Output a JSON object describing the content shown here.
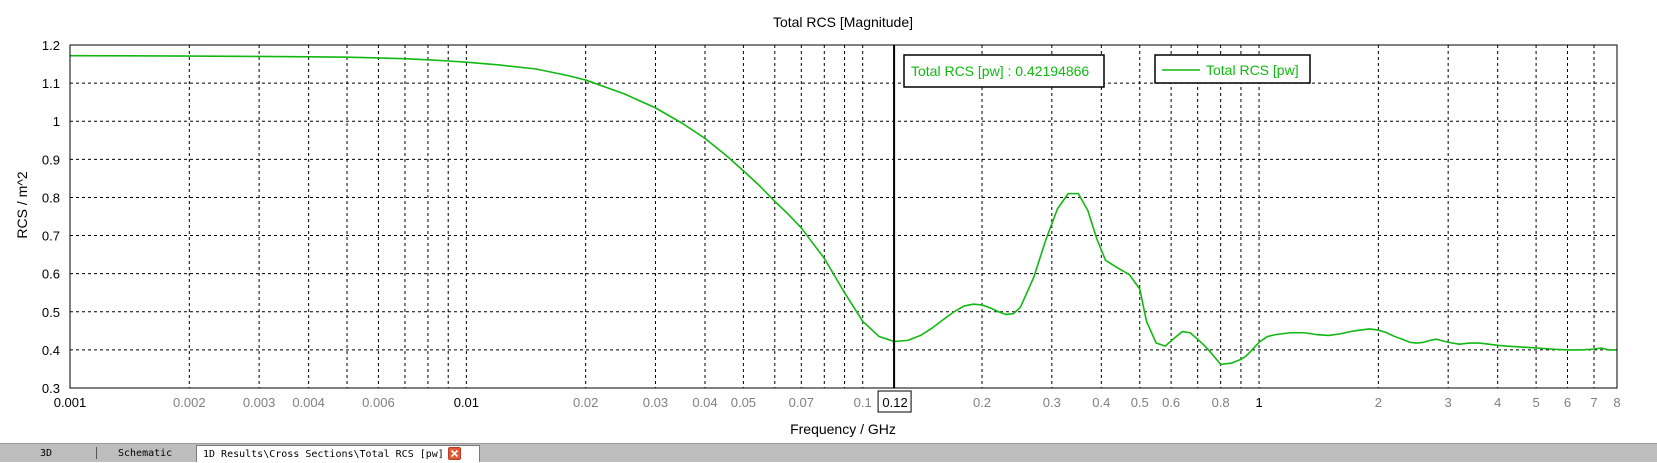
{
  "chart_data": {
    "type": "line",
    "title": "Total RCS [Magnitude]",
    "xlabel": "Frequency / GHz",
    "ylabel": "RCS / m^2",
    "x_scale": "log",
    "xlim": [
      0.001,
      8
    ],
    "ylim": [
      0.3,
      1.2
    ],
    "grid": true,
    "legend_position": "top-right",
    "y_ticks": [
      "0.3",
      "0.4",
      "0.5",
      "0.6",
      "0.7",
      "0.8",
      "0.9",
      "1",
      "1.1",
      "1.2"
    ],
    "x_major_ticks": [
      {
        "value": 0.001,
        "label": "0.001"
      },
      {
        "value": 0.01,
        "label": "0.01"
      },
      {
        "value": 1,
        "label": "1"
      }
    ],
    "x_minor_ticks": [
      {
        "value": 0.002,
        "label": "0.002"
      },
      {
        "value": 0.003,
        "label": "0.003"
      },
      {
        "value": 0.004,
        "label": "0.004"
      },
      {
        "value": 0.006,
        "label": "0.006"
      },
      {
        "value": 0.02,
        "label": "0.02"
      },
      {
        "value": 0.03,
        "label": "0.03"
      },
      {
        "value": 0.04,
        "label": "0.04"
      },
      {
        "value": 0.05,
        "label": "0.05"
      },
      {
        "value": 0.07,
        "label": "0.07"
      },
      {
        "value": 0.1,
        "label": "0.1"
      },
      {
        "value": 0.2,
        "label": "0.2"
      },
      {
        "value": 0.3,
        "label": "0.3"
      },
      {
        "value": 0.4,
        "label": "0.4"
      },
      {
        "value": 0.5,
        "label": "0.5"
      },
      {
        "value": 0.6,
        "label": "0.6"
      },
      {
        "value": 0.8,
        "label": "0.8"
      },
      {
        "value": 2,
        "label": "2"
      },
      {
        "value": 3,
        "label": "3"
      },
      {
        "value": 4,
        "label": "4"
      },
      {
        "value": 5,
        "label": "5"
      },
      {
        "value": 6,
        "label": "6"
      },
      {
        "value": 7,
        "label": "7"
      },
      {
        "value": 8,
        "label": "8"
      }
    ],
    "x_grid_lines": [
      0.002,
      0.003,
      0.004,
      0.005,
      0.006,
      0.007,
      0.008,
      0.009,
      0.01,
      0.02,
      0.03,
      0.04,
      0.05,
      0.06,
      0.07,
      0.08,
      0.09,
      0.1,
      0.2,
      0.3,
      0.4,
      0.5,
      0.6,
      0.7,
      0.8,
      0.9,
      1,
      2,
      3,
      4,
      5,
      6,
      7
    ],
    "series": [
      {
        "name": "Total RCS [pw]",
        "color": "#12b812",
        "x": [
          0.001,
          0.002,
          0.003,
          0.004,
          0.005,
          0.006,
          0.007,
          0.008,
          0.009,
          0.01,
          0.012,
          0.015,
          0.018,
          0.02,
          0.025,
          0.03,
          0.035,
          0.04,
          0.045,
          0.05,
          0.055,
          0.06,
          0.065,
          0.07,
          0.08,
          0.09,
          0.1,
          0.11,
          0.12,
          0.13,
          0.14,
          0.15,
          0.16,
          0.17,
          0.18,
          0.19,
          0.2,
          0.21,
          0.22,
          0.23,
          0.24,
          0.25,
          0.27,
          0.29,
          0.31,
          0.33,
          0.35,
          0.37,
          0.39,
          0.41,
          0.44,
          0.47,
          0.5,
          0.52,
          0.55,
          0.58,
          0.61,
          0.64,
          0.67,
          0.7,
          0.73,
          0.76,
          0.8,
          0.85,
          0.9,
          0.93,
          0.96,
          1.0,
          1.05,
          1.1,
          1.2,
          1.3,
          1.4,
          1.5,
          1.6,
          1.7,
          1.8,
          1.9,
          2.0,
          2.1,
          2.2,
          2.3,
          2.4,
          2.5,
          2.6,
          2.7,
          2.8,
          3.0,
          3.2,
          3.4,
          3.6,
          3.8,
          4.0,
          4.2,
          4.5,
          5.0,
          5.5,
          6.0,
          6.5,
          7.0,
          7.3,
          7.6,
          8.0
        ],
        "y": [
          1.172,
          1.171,
          1.17,
          1.169,
          1.168,
          1.166,
          1.164,
          1.161,
          1.158,
          1.155,
          1.148,
          1.137,
          1.12,
          1.108,
          1.072,
          1.035,
          0.995,
          0.955,
          0.912,
          0.87,
          0.83,
          0.79,
          0.755,
          0.72,
          0.64,
          0.55,
          0.475,
          0.435,
          0.422,
          0.425,
          0.438,
          0.458,
          0.48,
          0.5,
          0.515,
          0.52,
          0.518,
          0.51,
          0.5,
          0.493,
          0.495,
          0.512,
          0.59,
          0.69,
          0.77,
          0.81,
          0.81,
          0.765,
          0.69,
          0.635,
          0.615,
          0.598,
          0.56,
          0.475,
          0.418,
          0.41,
          0.43,
          0.448,
          0.445,
          0.428,
          0.41,
          0.39,
          0.362,
          0.365,
          0.375,
          0.385,
          0.4,
          0.42,
          0.435,
          0.44,
          0.445,
          0.445,
          0.44,
          0.438,
          0.442,
          0.448,
          0.452,
          0.455,
          0.452,
          0.445,
          0.435,
          0.428,
          0.42,
          0.418,
          0.42,
          0.425,
          0.428,
          0.42,
          0.415,
          0.418,
          0.418,
          0.415,
          0.412,
          0.41,
          0.408,
          0.405,
          0.402,
          0.4,
          0.4,
          0.402,
          0.405,
          0.4,
          0.4
        ]
      }
    ],
    "marker": {
      "x": 0.12,
      "x_label": "0.12",
      "readout": "Total RCS [pw] : 0.42194866"
    }
  },
  "tabs": [
    {
      "label": "3D",
      "active": false
    },
    {
      "label": "Schematic",
      "active": false
    },
    {
      "label": "1D Results\\Cross Sections\\Total RCS [pw]",
      "active": true
    }
  ],
  "colors": {
    "curve": "#12b812",
    "tab_close": "#e05a3a"
  },
  "icons": {
    "tab_close": "close-icon"
  }
}
